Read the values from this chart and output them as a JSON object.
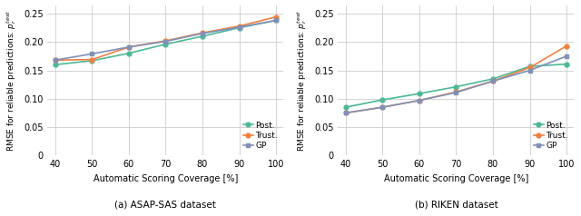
{
  "x": [
    40,
    50,
    60,
    70,
    80,
    90,
    100
  ],
  "asap": {
    "post": [
      0.16,
      0.167,
      0.18,
      0.196,
      0.21,
      0.225,
      0.238
    ],
    "trust": [
      0.168,
      0.169,
      0.191,
      0.202,
      0.216,
      0.228,
      0.244
    ],
    "gp": [
      0.168,
      0.179,
      0.191,
      0.201,
      0.215,
      0.226,
      0.238
    ]
  },
  "riken": {
    "post": [
      0.085,
      0.098,
      0.109,
      0.121,
      0.135,
      0.157,
      0.161
    ],
    "trust": [
      0.075,
      0.085,
      0.097,
      0.112,
      0.131,
      0.155,
      0.193
    ],
    "gp": [
      0.075,
      0.085,
      0.097,
      0.111,
      0.131,
      0.15,
      0.175
    ]
  },
  "colors": {
    "post": "#4cb898",
    "trust": "#f08040",
    "gp": "#8090b8"
  },
  "ylabel": "RMSE for reliable predictions: $p_r^{test}$",
  "xlabel": "Automatic Scoring Coverage [%]",
  "caption_a": "(a) ASAP-SAS dataset",
  "caption_b": "(b) RIKEN dataset",
  "ylim": [
    0,
    0.265
  ],
  "yticks": [
    0,
    0.05,
    0.1,
    0.15,
    0.2,
    0.25
  ],
  "xticks": [
    40,
    50,
    60,
    70,
    80,
    90,
    100
  ],
  "legend_labels": [
    "Post.",
    "Trust.",
    "GP"
  ],
  "background_color": "#ffffff",
  "grid_color": "#cccccc"
}
